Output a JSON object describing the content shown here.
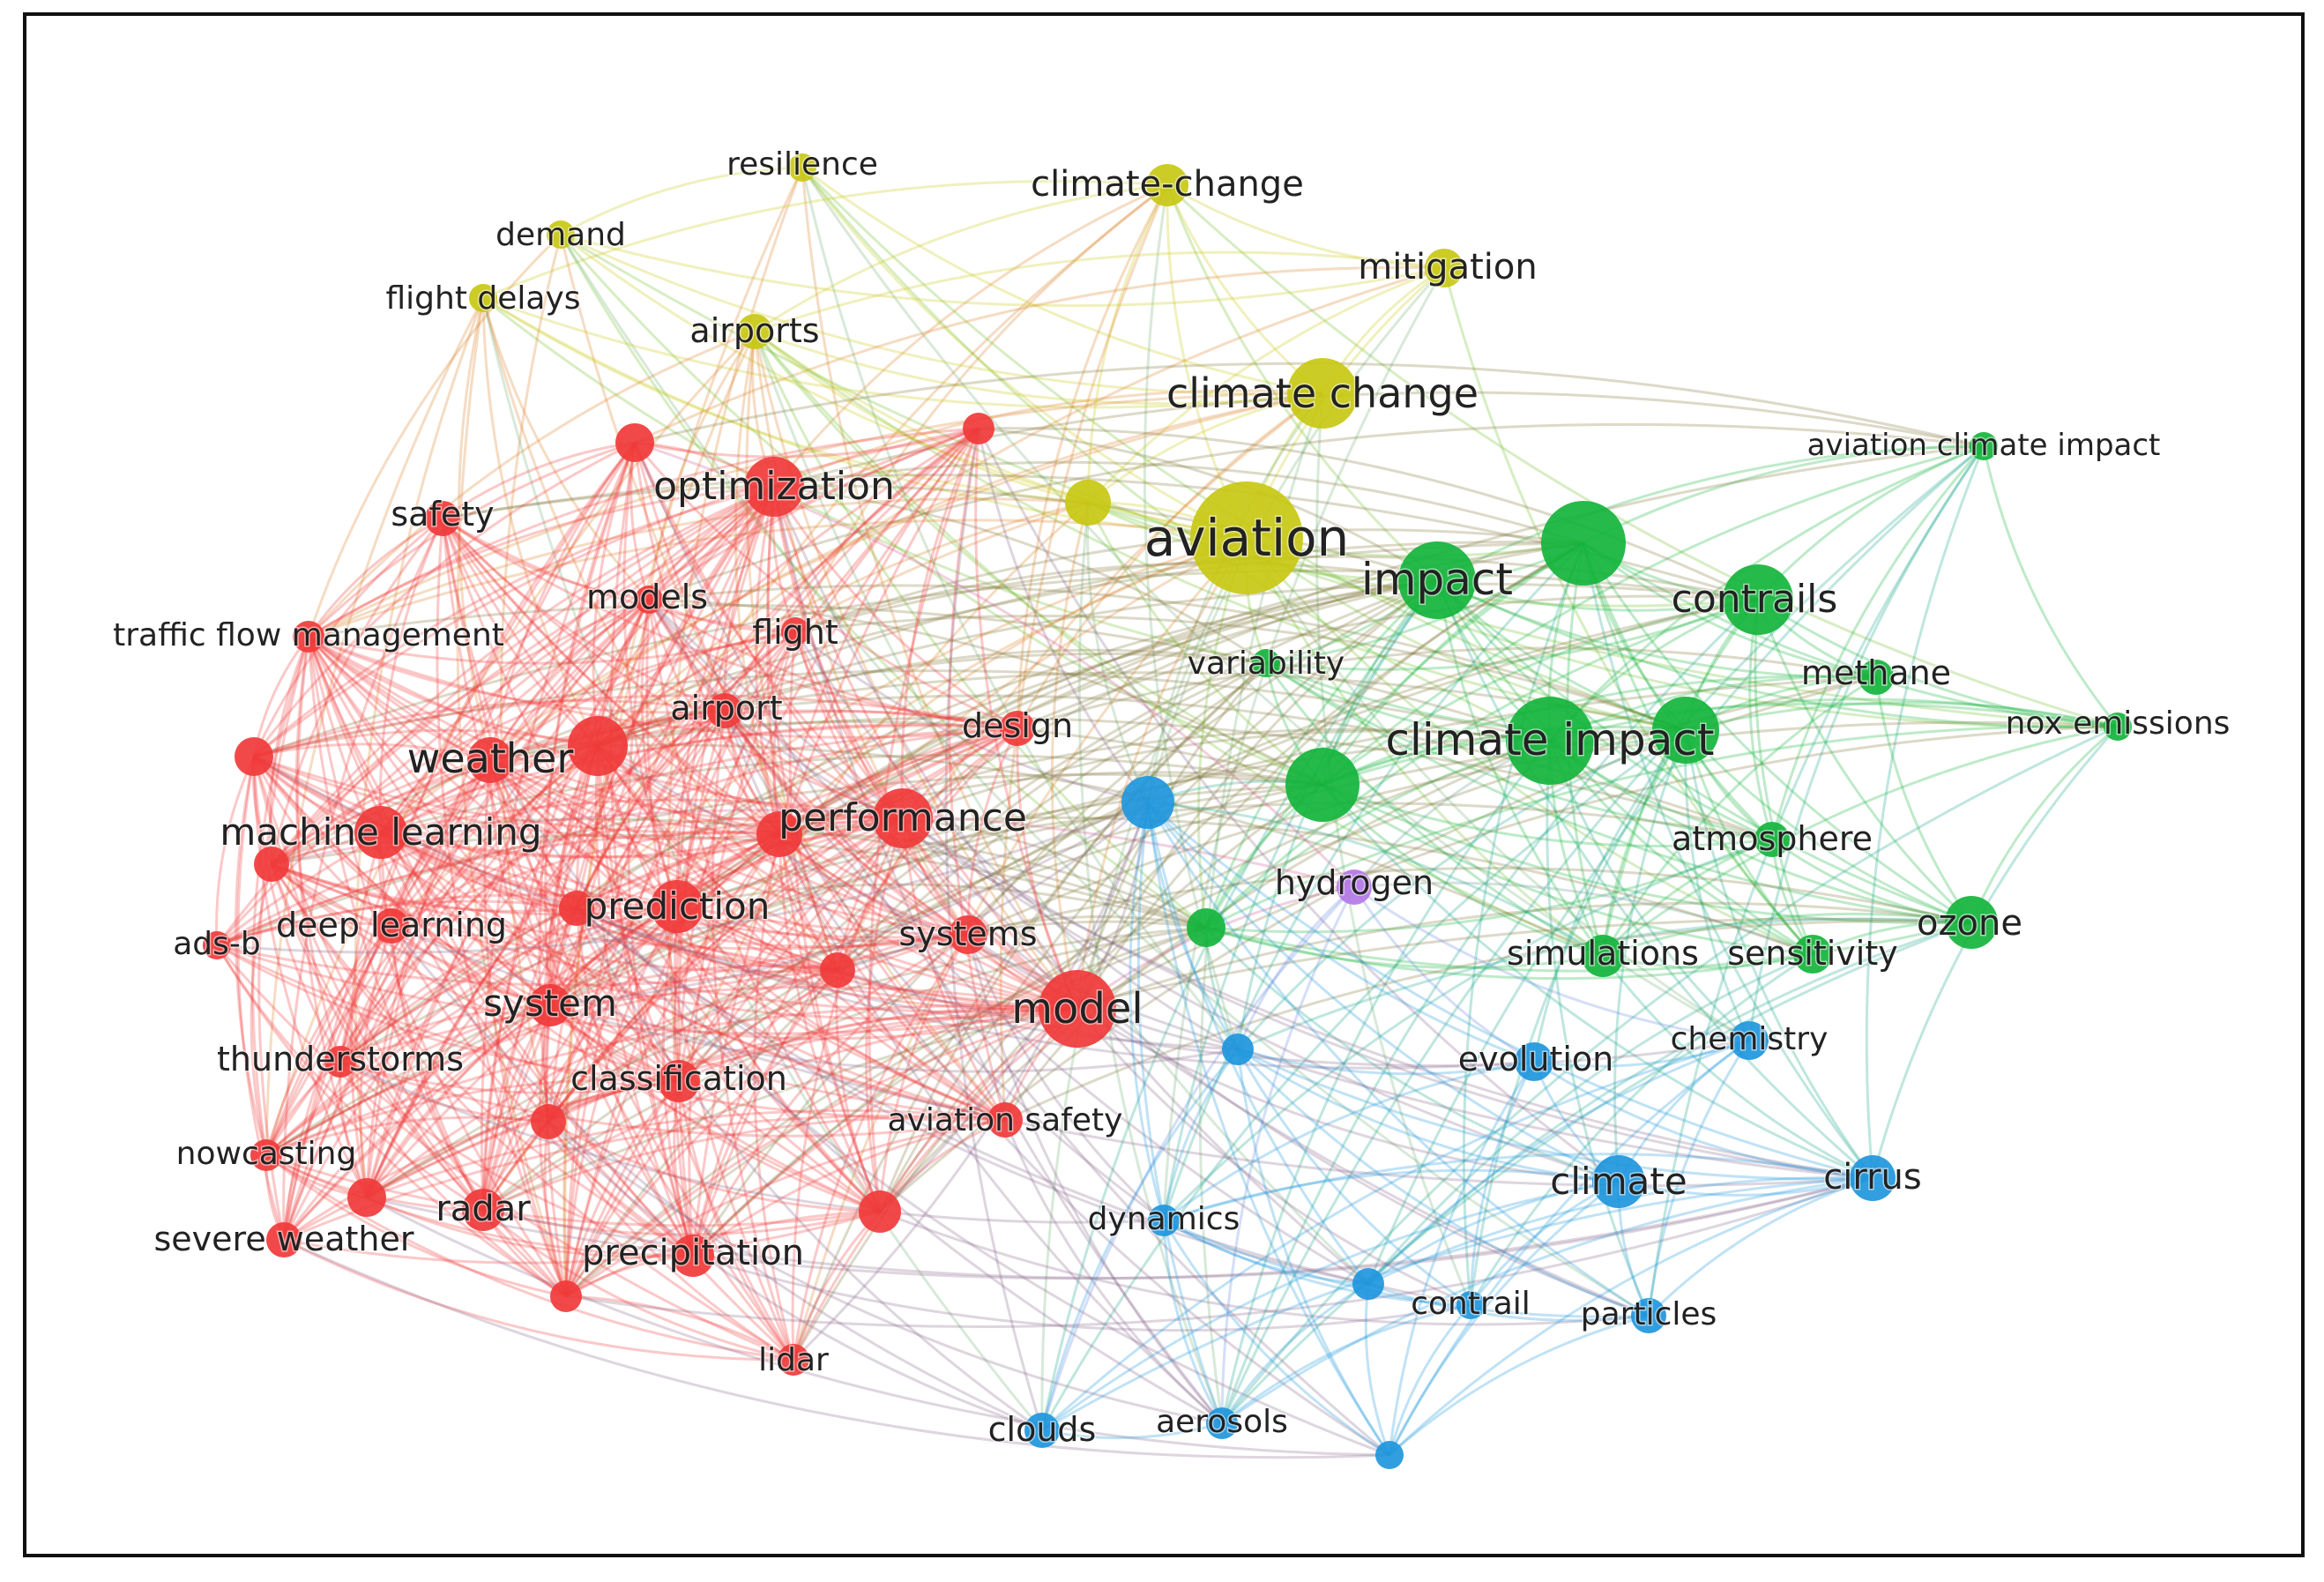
{
  "clusters": {
    "red": "#f03a3a",
    "yellow": "#c8c814",
    "green": "#14b43c",
    "blue": "#1e96dc",
    "purple": "#b478e6"
  },
  "nodes": [
    {
      "id": "resilience",
      "label": "resilience",
      "cluster": "yellow"
    },
    {
      "id": "climate-change",
      "label": "climate-change",
      "cluster": "yellow"
    },
    {
      "id": "demand",
      "label": "demand",
      "cluster": "yellow"
    },
    {
      "id": "mitigation",
      "label": "mitigation",
      "cluster": "yellow"
    },
    {
      "id": "flight-delays",
      "label": "flight delays",
      "cluster": "yellow"
    },
    {
      "id": "airports",
      "label": "airports",
      "cluster": "yellow"
    },
    {
      "id": "climate-change-2",
      "label": "climate change",
      "cluster": "yellow"
    },
    {
      "id": "aviation",
      "label": "aviation",
      "cluster": "yellow"
    },
    {
      "id": "y-unlabeled",
      "label": "",
      "cluster": "yellow"
    },
    {
      "id": "variability",
      "label": "variability",
      "cluster": "green"
    },
    {
      "id": "aviation-climate-impact",
      "label": "aviation climate impact",
      "cluster": "green"
    },
    {
      "id": "impact",
      "label": "impact",
      "cluster": "green"
    },
    {
      "id": "g-unlabeled-1",
      "label": "",
      "cluster": "green"
    },
    {
      "id": "contrails",
      "label": "contrails",
      "cluster": "green"
    },
    {
      "id": "methane",
      "label": "methane",
      "cluster": "green"
    },
    {
      "id": "nox-emissions",
      "label": "nox emissions",
      "cluster": "green"
    },
    {
      "id": "climate-impact",
      "label": "climate impact",
      "cluster": "green"
    },
    {
      "id": "g-unlabeled-2",
      "label": "",
      "cluster": "green"
    },
    {
      "id": "g-unlabeled-3",
      "label": "",
      "cluster": "green"
    },
    {
      "id": "g-unlabeled-4",
      "label": "",
      "cluster": "green"
    },
    {
      "id": "atmosphere",
      "label": "atmosphere",
      "cluster": "green"
    },
    {
      "id": "ozone",
      "label": "ozone",
      "cluster": "green"
    },
    {
      "id": "simulations",
      "label": "simulations",
      "cluster": "green"
    },
    {
      "id": "sensitivity",
      "label": "sensitivity",
      "cluster": "green"
    },
    {
      "id": "hydrogen",
      "label": "hydrogen",
      "cluster": "purple"
    },
    {
      "id": "optimization",
      "label": "optimization",
      "cluster": "red"
    },
    {
      "id": "r-unlabeled-1",
      "label": "",
      "cluster": "red"
    },
    {
      "id": "r-unlabeled-2",
      "label": "",
      "cluster": "red"
    },
    {
      "id": "safety",
      "label": "safety",
      "cluster": "red"
    },
    {
      "id": "models",
      "label": "models",
      "cluster": "red"
    },
    {
      "id": "traffic-flow-management",
      "label": "traffic flow management",
      "cluster": "red"
    },
    {
      "id": "flight",
      "label": "flight",
      "cluster": "red"
    },
    {
      "id": "airport",
      "label": "airport",
      "cluster": "red"
    },
    {
      "id": "design",
      "label": "design",
      "cluster": "red"
    },
    {
      "id": "weather",
      "label": "weather",
      "cluster": "red"
    },
    {
      "id": "r-unlabeled-3",
      "label": "",
      "cluster": "red"
    },
    {
      "id": "r-unlabeled-4",
      "label": "",
      "cluster": "red"
    },
    {
      "id": "machine-learning",
      "label": "machine learning",
      "cluster": "red"
    },
    {
      "id": "performance",
      "label": "performance",
      "cluster": "red"
    },
    {
      "id": "r-unlabeled-5",
      "label": "",
      "cluster": "red"
    },
    {
      "id": "r-unlabeled-6",
      "label": "",
      "cluster": "red"
    },
    {
      "id": "deep-learning",
      "label": "deep learning",
      "cluster": "red"
    },
    {
      "id": "prediction",
      "label": "prediction",
      "cluster": "red"
    },
    {
      "id": "r-unlabeled-7",
      "label": "",
      "cluster": "red"
    },
    {
      "id": "ads-b",
      "label": "ads-b",
      "cluster": "red"
    },
    {
      "id": "systems",
      "label": "systems",
      "cluster": "red"
    },
    {
      "id": "r-unlabeled-8",
      "label": "",
      "cluster": "red"
    },
    {
      "id": "system",
      "label": "system",
      "cluster": "red"
    },
    {
      "id": "model",
      "label": "model",
      "cluster": "red"
    },
    {
      "id": "thunderstorms",
      "label": "thunderstorms",
      "cluster": "red"
    },
    {
      "id": "classification",
      "label": "classification",
      "cluster": "red"
    },
    {
      "id": "r-unlabeled-9",
      "label": "",
      "cluster": "red"
    },
    {
      "id": "aviation-safety",
      "label": "aviation safety",
      "cluster": "red"
    },
    {
      "id": "nowcasting",
      "label": "nowcasting",
      "cluster": "red"
    },
    {
      "id": "radar",
      "label": "radar",
      "cluster": "red"
    },
    {
      "id": "r-unlabeled-10",
      "label": "",
      "cluster": "red"
    },
    {
      "id": "severe-weather",
      "label": "severe weather",
      "cluster": "red"
    },
    {
      "id": "precipitation",
      "label": "precipitation",
      "cluster": "red"
    },
    {
      "id": "r-unlabeled-11",
      "label": "",
      "cluster": "red"
    },
    {
      "id": "lidar",
      "label": "lidar",
      "cluster": "red"
    },
    {
      "id": "r-unlabeled-12",
      "label": "",
      "cluster": "red"
    },
    {
      "id": "b-unlabeled-1",
      "label": "",
      "cluster": "blue"
    },
    {
      "id": "b-unlabeled-2",
      "label": "",
      "cluster": "blue"
    },
    {
      "id": "evolution",
      "label": "evolution",
      "cluster": "blue"
    },
    {
      "id": "chemistry",
      "label": "chemistry",
      "cluster": "blue"
    },
    {
      "id": "climate",
      "label": "climate",
      "cluster": "blue"
    },
    {
      "id": "cirrus",
      "label": "cirrus",
      "cluster": "blue"
    },
    {
      "id": "dynamics",
      "label": "dynamics",
      "cluster": "blue"
    },
    {
      "id": "b-unlabeled-3",
      "label": "",
      "cluster": "blue"
    },
    {
      "id": "contrail",
      "label": "contrail",
      "cluster": "blue"
    },
    {
      "id": "particles",
      "label": "particles",
      "cluster": "blue"
    },
    {
      "id": "clouds",
      "label": "clouds",
      "cluster": "blue"
    },
    {
      "id": "aerosols",
      "label": "aerosols",
      "cluster": "blue"
    },
    {
      "id": "b-unlabeled-4",
      "label": "",
      "cluster": "blue"
    }
  ]
}
